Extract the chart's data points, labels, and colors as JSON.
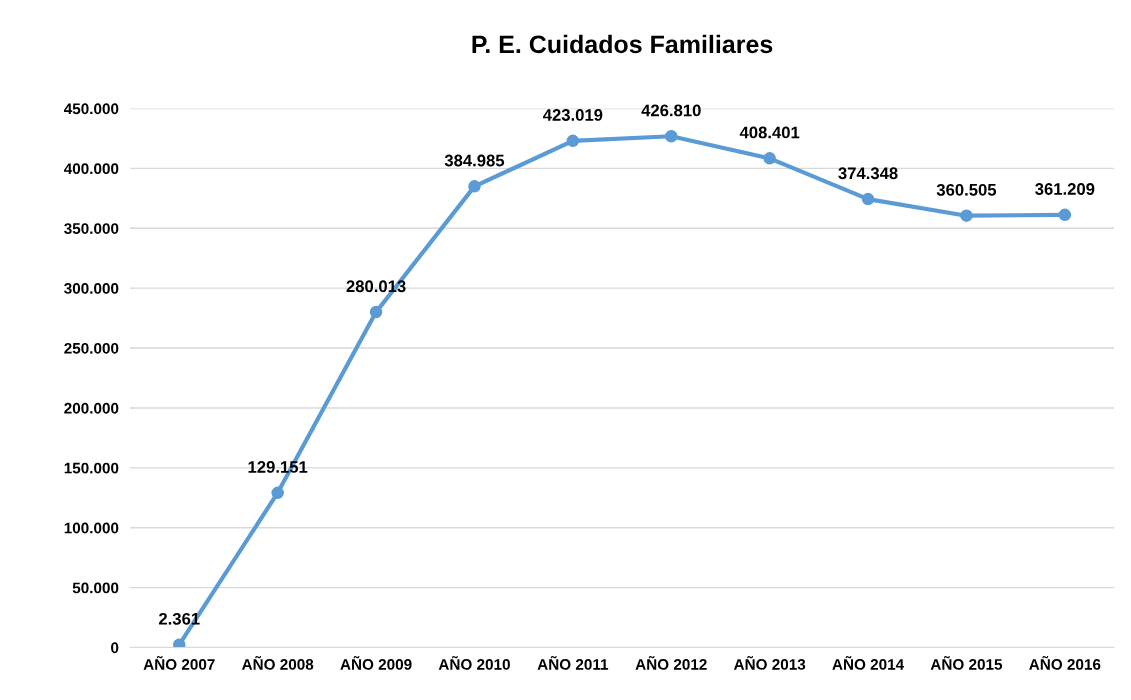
{
  "chart_data": {
    "type": "line",
    "title": "P. E. Cuidados Familiares",
    "categories": [
      "AÑO 2007",
      "AÑO 2008",
      "AÑO 2009",
      "AÑO 2010",
      "AÑO 2011",
      "AÑO 2012",
      "AÑO 2013",
      "AÑO 2014",
      "AÑO 2015",
      "AÑO 2016"
    ],
    "series": [
      {
        "color": "#5b9bd5",
        "values": [
          2361,
          129151,
          280013,
          384985,
          423019,
          426810,
          408401,
          374348,
          360505,
          361209
        ],
        "value_labels": [
          "2.361",
          "129.151",
          "280.013",
          "384.985",
          "423.019",
          "426.810",
          "408.401",
          "374.348",
          "360.505",
          "361.209"
        ]
      }
    ],
    "ylim": [
      0,
      450000
    ],
    "yticks": [
      {
        "value": 0,
        "label": "0"
      },
      {
        "value": 50000,
        "label": "50.000"
      },
      {
        "value": 100000,
        "label": "100.000"
      },
      {
        "value": 150000,
        "label": "150.000"
      },
      {
        "value": 200000,
        "label": "200.000"
      },
      {
        "value": 250000,
        "label": "250.000"
      },
      {
        "value": 300000,
        "label": "300.000"
      },
      {
        "value": 350000,
        "label": "350.000"
      },
      {
        "value": 400000,
        "label": "400.000"
      },
      {
        "value": 450000,
        "label": "450.000"
      }
    ],
    "grid": "y",
    "marker": "circle",
    "line_style": "solid"
  }
}
